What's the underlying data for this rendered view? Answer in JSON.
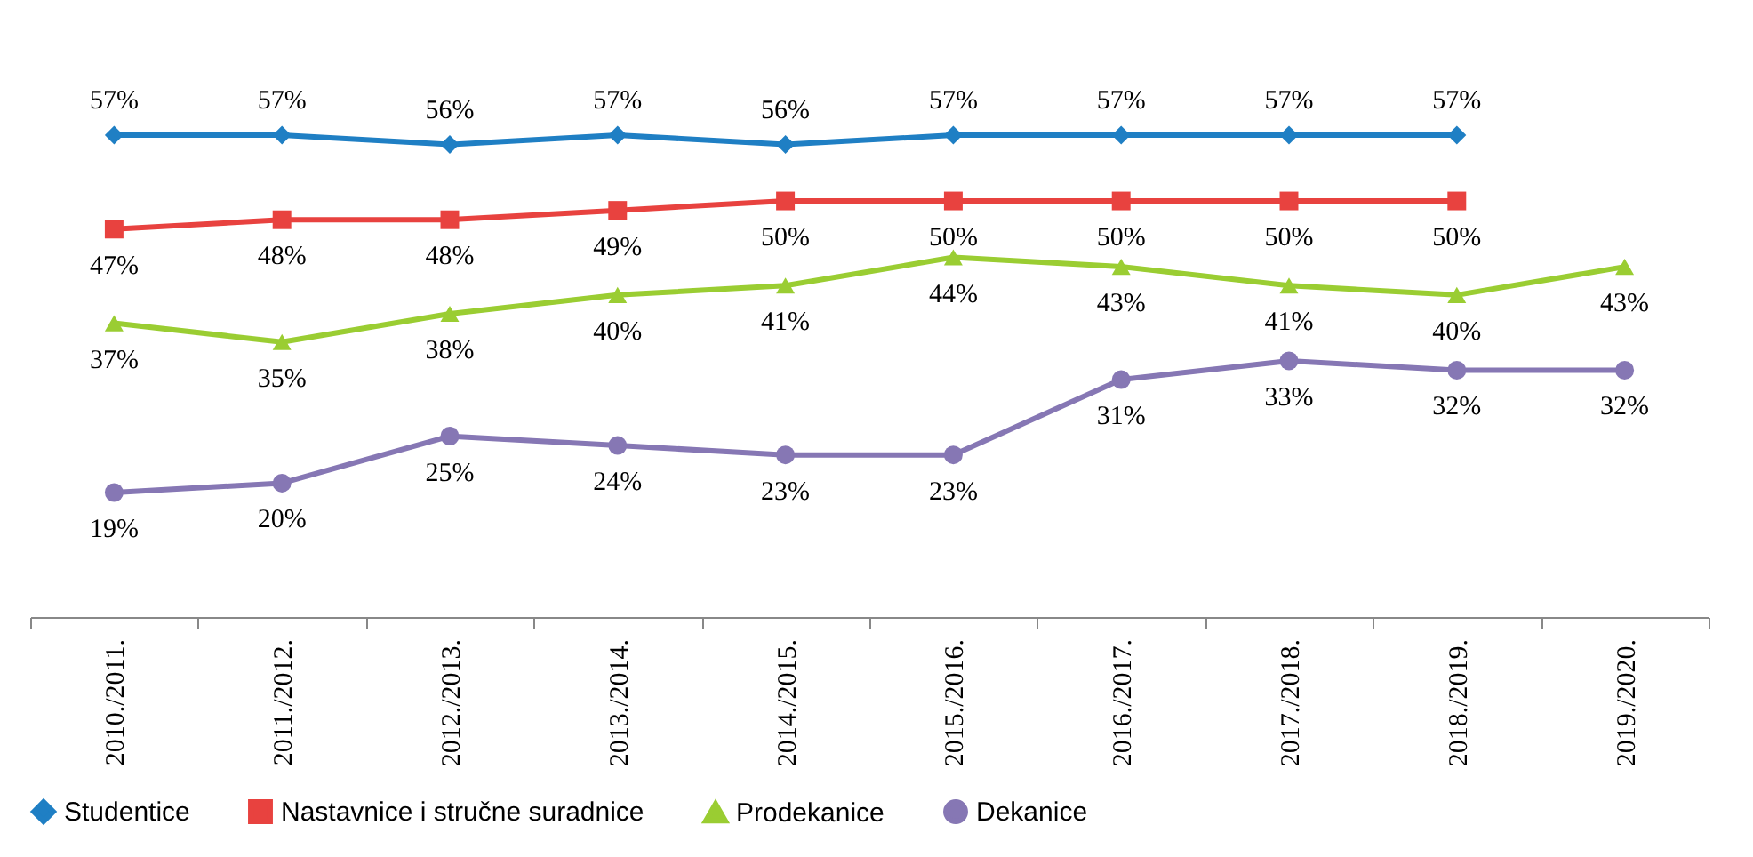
{
  "chart_data": {
    "type": "line",
    "categories": [
      "2010./2011.",
      "2011./2012.",
      "2012./2013.",
      "2013./2014.",
      "2014./2015.",
      "2015./2016.",
      "2016./2017.",
      "2017./2018.",
      "2018./2019.",
      "2019./2020."
    ],
    "series": [
      {
        "name": "Studentice",
        "color": "#1f7fc4",
        "marker": "diamond",
        "values": [
          57,
          57,
          56,
          57,
          56,
          57,
          57,
          57,
          57,
          null
        ],
        "value_labels": [
          "57%",
          "57%",
          "56%",
          "57%",
          "56%",
          "57%",
          "57%",
          "57%",
          "57%",
          null
        ]
      },
      {
        "name": "Nastavnice i stručne suradnice",
        "color": "#e8423f",
        "marker": "square",
        "values": [
          47,
          48,
          48,
          49,
          50,
          50,
          50,
          50,
          50,
          null
        ],
        "value_labels": [
          "47%",
          "48%",
          "48%",
          "49%",
          "50%",
          "50%",
          "50%",
          "50%",
          "50%",
          null
        ]
      },
      {
        "name": "Prodekanice",
        "color": "#9acd32",
        "marker": "triangle",
        "values": [
          37,
          35,
          38,
          40,
          41,
          44,
          43,
          41,
          40,
          43
        ],
        "value_labels": [
          "37%",
          "35%",
          "38%",
          "40%",
          "41%",
          "44%",
          "43%",
          "41%",
          "40%",
          "43%"
        ]
      },
      {
        "name": "Dekanice",
        "color": "#8677b4",
        "marker": "circle",
        "values": [
          19,
          20,
          25,
          24,
          23,
          23,
          31,
          33,
          32,
          32
        ],
        "value_labels": [
          "19%",
          "20%",
          "25%",
          "24%",
          "23%",
          "23%",
          "31%",
          "33%",
          "32%",
          "32%"
        ]
      }
    ],
    "tick_labels": "x",
    "legend": "bottom"
  }
}
